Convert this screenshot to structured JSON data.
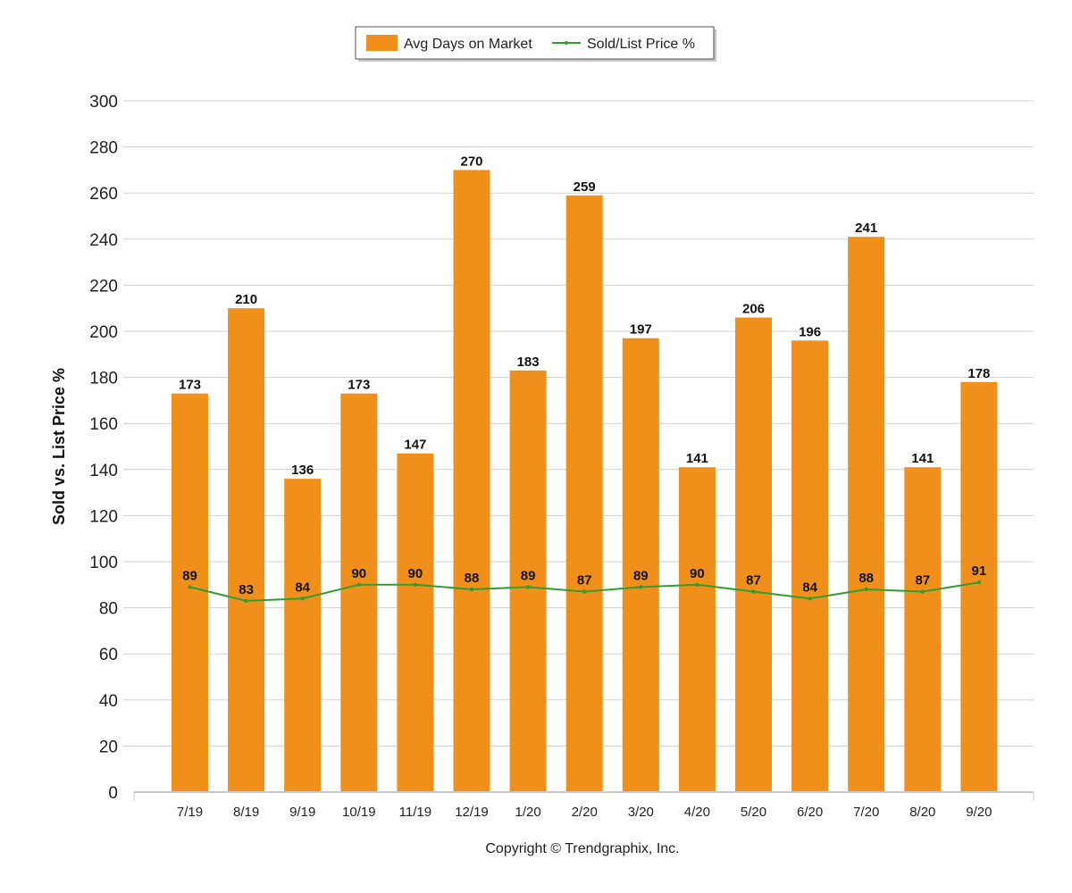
{
  "chart_data": {
    "type": "bar",
    "categories": [
      "7/19",
      "8/19",
      "9/19",
      "10/19",
      "11/19",
      "12/19",
      "1/20",
      "2/20",
      "3/20",
      "4/20",
      "5/20",
      "6/20",
      "7/20",
      "8/20",
      "9/20"
    ],
    "series": [
      {
        "name": "Avg Days on Market",
        "type": "bar",
        "color": "#F0901A",
        "values": [
          173,
          210,
          136,
          173,
          147,
          270,
          183,
          259,
          197,
          141,
          206,
          196,
          241,
          141,
          178
        ]
      },
      {
        "name": "Sold/List Price %",
        "type": "line",
        "color": "#2E9E2E",
        "values": [
          89,
          83,
          84,
          90,
          90,
          88,
          89,
          87,
          89,
          90,
          87,
          84,
          88,
          87,
          91
        ]
      }
    ],
    "ylabel": "Sold vs. List Price %",
    "ylim": [
      0,
      300
    ],
    "yticks": [
      0,
      20,
      40,
      60,
      80,
      100,
      120,
      140,
      160,
      180,
      200,
      220,
      240,
      260,
      280,
      300
    ],
    "grid": true,
    "legend_position": "top-center"
  },
  "footer": {
    "copyright": "Copyright © Trendgraphix, Inc."
  }
}
